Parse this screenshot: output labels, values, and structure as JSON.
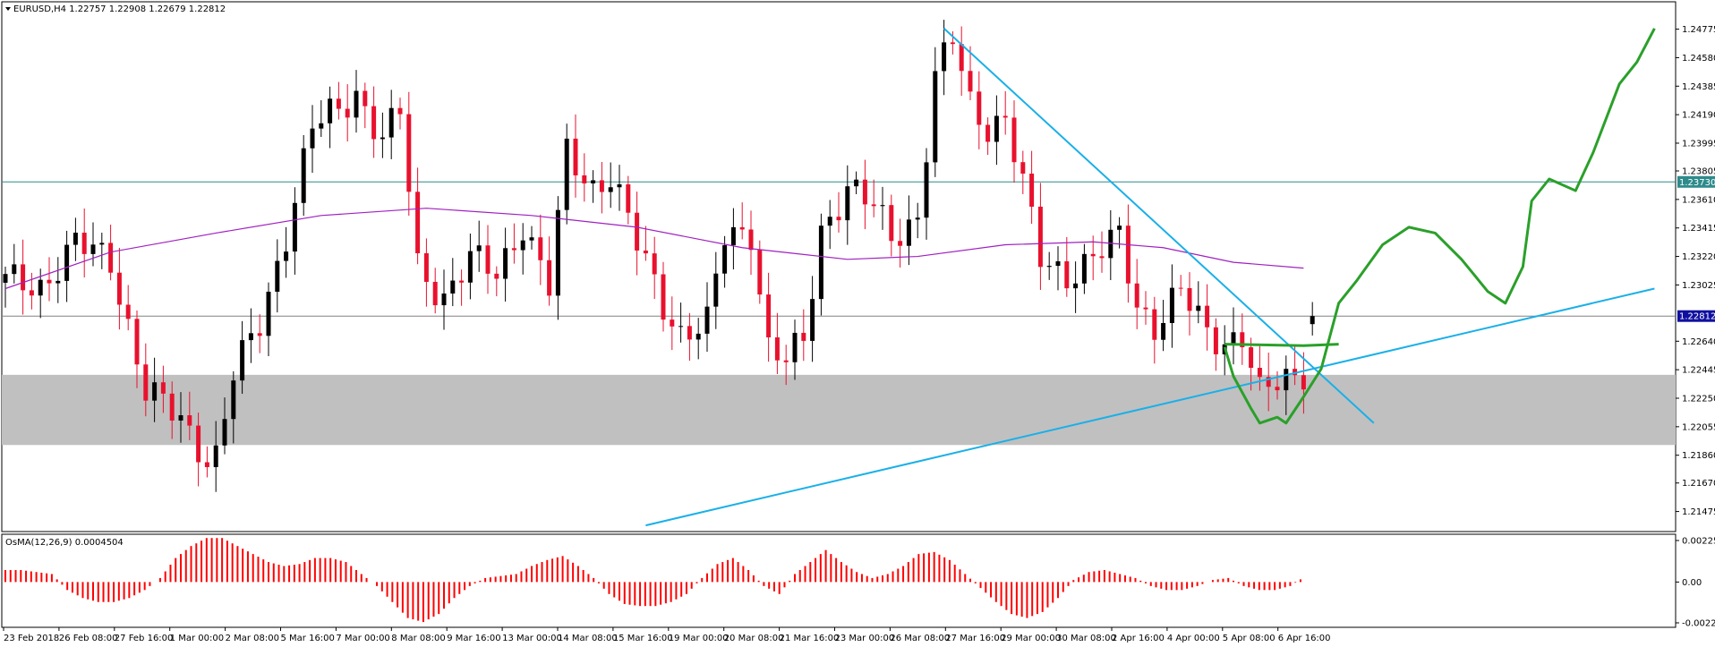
{
  "window": {
    "symbol_header": "EURUSD,H4  1.22757 1.22908 1.22679 1.22812",
    "menu_icon": "triangle-down-icon"
  },
  "colors": {
    "bull": "#000000",
    "bear": "#e8112d",
    "ma": "#a020c0",
    "trendline": "#1ab0e8",
    "projection": "#2aa02a",
    "zone": "#c0c0c0",
    "hline_teal": "#2e8b8b",
    "hline_gray": "#808080",
    "price_tag_current": "#1010a0",
    "price_tag_level": "#2e8b8b",
    "osma": "#ff0000"
  },
  "price_axis": {
    "ticks": [
      "1.24775",
      "1.24580",
      "1.24385",
      "1.24190",
      "1.23995",
      "1.23805",
      "1.23610",
      "1.23415",
      "1.23220",
      "1.23025",
      "1.22640",
      "1.22445",
      "1.22250",
      "1.22055",
      "1.21860",
      "1.21670",
      "1.21475"
    ],
    "current_price": "1.22812",
    "level_price": "1.23730"
  },
  "osma": {
    "header": "OsMA(12,26,9) 0.0004504",
    "ticks": [
      "0.002255",
      "0.00",
      "-0.002220"
    ]
  },
  "time_axis": {
    "labels": [
      "23 Feb 2018",
      "26 Feb 08:00",
      "27 Feb 16:00",
      "1 Mar 00:00",
      "2 Mar 08:00",
      "5 Mar 16:00",
      "7 Mar 00:00",
      "8 Mar 08:00",
      "9 Mar 16:00",
      "13 Mar 00:00",
      "14 Mar 08:00",
      "15 Mar 16:00",
      "19 Mar 00:00",
      "20 Mar 08:00",
      "21 Mar 16:00",
      "23 Mar 00:00",
      "26 Mar 08:00",
      "27 Mar 16:00",
      "29 Mar 00:00",
      "30 Mar 08:00",
      "2 Apr 16:00",
      "4 Apr 00:00",
      "5 Apr 08:00",
      "6 Apr 16:00"
    ]
  },
  "chart_data": {
    "type": "candlestick",
    "title": "EURUSD,H4",
    "ohlc_header": {
      "open": 1.22757,
      "high": 1.22908,
      "low": 1.22679,
      "close": 1.22812
    },
    "ylim": [
      1.2135,
      1.2495
    ],
    "close_path": [
      [
        0,
        1.2305
      ],
      [
        4,
        1.2302
      ],
      [
        8,
        1.233
      ],
      [
        12,
        1.232
      ],
      [
        16,
        1.223
      ],
      [
        20,
        1.221
      ],
      [
        23,
        1.2185
      ],
      [
        24,
        1.2186
      ],
      [
        26,
        1.224
      ],
      [
        29,
        1.2276
      ],
      [
        32,
        1.2338
      ],
      [
        35,
        1.241
      ],
      [
        38,
        1.2422
      ],
      [
        40,
        1.2435
      ],
      [
        43,
        1.2402
      ],
      [
        45,
        1.242
      ],
      [
        47,
        1.2315
      ],
      [
        50,
        1.2295
      ],
      [
        53,
        1.232
      ],
      [
        56,
        1.231
      ],
      [
        59,
        1.2345
      ],
      [
        62,
        1.23
      ],
      [
        64,
        1.2392
      ],
      [
        67,
        1.237
      ],
      [
        69,
        1.2378
      ],
      [
        72,
        1.233
      ],
      [
        75,
        1.229
      ],
      [
        77,
        1.227
      ],
      [
        80,
        1.2275
      ],
      [
        82,
        1.2335
      ],
      [
        85,
        1.234
      ],
      [
        87,
        1.226
      ],
      [
        89,
        1.225
      ],
      [
        91,
        1.2262
      ],
      [
        93,
        1.234
      ],
      [
        96,
        1.237
      ],
      [
        99,
        1.2355
      ],
      [
        101,
        1.2335
      ],
      [
        104,
        1.235
      ],
      [
        106,
        1.2444
      ],
      [
        108,
        1.247
      ],
      [
        110,
        1.2426
      ],
      [
        112,
        1.2412
      ],
      [
        114,
        1.2417
      ],
      [
        116,
        1.237
      ],
      [
        118,
        1.232
      ],
      [
        121,
        1.231
      ],
      [
        124,
        1.232
      ],
      [
        127,
        1.2335
      ],
      [
        129,
        1.229
      ],
      [
        131,
        1.2275
      ],
      [
        134,
        1.2297
      ],
      [
        137,
        1.227
      ],
      [
        139,
        1.2265
      ],
      [
        141,
        1.2268
      ],
      [
        143,
        1.2226
      ],
      [
        145,
        1.2235
      ],
      [
        148,
        1.2245
      ],
      [
        149,
        1.2281
      ]
    ],
    "moving_average": [
      [
        0,
        1.23
      ],
      [
        12,
        1.2325
      ],
      [
        24,
        1.2338
      ],
      [
        36,
        1.235
      ],
      [
        48,
        1.2355
      ],
      [
        60,
        1.235
      ],
      [
        72,
        1.2342
      ],
      [
        84,
        1.2328
      ],
      [
        96,
        1.232
      ],
      [
        104,
        1.2322
      ],
      [
        114,
        1.233
      ],
      [
        124,
        1.2332
      ],
      [
        132,
        1.2328
      ],
      [
        140,
        1.2318
      ],
      [
        148,
        1.2314
      ]
    ],
    "horizontal_levels": [
      1.2373,
      1.22812
    ],
    "support_zone": [
      1.2193,
      1.2241
    ],
    "trendlines": [
      {
        "from": [
          73,
          1.2138
        ],
        "to": [
          188,
          1.23
        ]
      },
      {
        "from": [
          107,
          1.2478
        ],
        "to": [
          156,
          1.2208
        ]
      }
    ],
    "projection_path": [
      [
        139,
        1.226
      ],
      [
        140,
        1.224
      ],
      [
        142,
        1.2218
      ],
      [
        143,
        1.2208
      ],
      [
        145,
        1.2212
      ],
      [
        146,
        1.2208
      ],
      [
        148,
        1.2226
      ],
      [
        150,
        1.2245
      ],
      [
        152,
        1.229
      ],
      [
        154,
        1.2305
      ],
      [
        157,
        1.233
      ],
      [
        160,
        1.2342
      ],
      [
        163,
        1.2338
      ],
      [
        166,
        1.232
      ],
      [
        169,
        1.2298
      ],
      [
        171,
        1.229
      ],
      [
        173,
        1.2315
      ],
      [
        174,
        1.236
      ],
      [
        176,
        1.2375
      ],
      [
        179,
        1.2367
      ],
      [
        181,
        1.2393
      ],
      [
        184,
        1.244
      ],
      [
        186,
        1.2455
      ],
      [
        188,
        1.2478
      ]
    ],
    "neckline_path": [
      [
        139,
        1.2262
      ],
      [
        148,
        1.2261
      ],
      [
        152,
        1.2262
      ]
    ],
    "osma_values": [
      0.0006,
      0.0006,
      0.0005,
      0.0004,
      -0.0004,
      -0.0008,
      -0.001,
      -0.001,
      -0.0008,
      -0.0004,
      0.0002,
      0.0012,
      0.0018,
      0.0022,
      0.0022,
      0.0018,
      0.0014,
      0.001,
      0.0008,
      0.0009,
      0.0012,
      0.0012,
      0.001,
      0.0004,
      -0.0002,
      -0.001,
      -0.0018,
      -0.002,
      -0.0016,
      -0.0008,
      -0.0002,
      0.0002,
      0.0003,
      0.0004,
      0.0008,
      0.0011,
      0.0013,
      0.0008,
      0.0002,
      -0.0006,
      -0.0011,
      -0.0012,
      -0.0012,
      -0.001,
      -0.0006,
      0.0002,
      0.0009,
      0.0012,
      0.0006,
      -0.0002,
      -0.0006,
      0.0004,
      0.001,
      0.0016,
      0.001,
      0.0005,
      0.0002,
      0.0004,
      0.0008,
      0.0014,
      0.0015,
      0.0011,
      0.0004,
      -0.0003,
      -0.001,
      -0.0016,
      -0.0018,
      -0.0015,
      -0.0008,
      0.0001,
      0.0005,
      0.0006,
      0.0004,
      0.0002,
      -0.0002,
      -0.0004,
      -0.0004,
      -0.0002,
      0.0001,
      0.0002,
      -0.0002,
      -0.0004,
      -0.0004,
      -0.0002,
      0.0003
    ],
    "osma_ylim": [
      -0.00222,
      0.002255
    ],
    "x_labels": [
      "23 Feb 2018",
      "26 Feb 08:00",
      "27 Feb 16:00",
      "1 Mar 00:00",
      "2 Mar 08:00",
      "5 Mar 16:00",
      "7 Mar 00:00",
      "8 Mar 08:00",
      "9 Mar 16:00",
      "13 Mar 00:00",
      "14 Mar 08:00",
      "15 Mar 16:00",
      "19 Mar 00:00",
      "20 Mar 08:00",
      "21 Mar 16:00",
      "23 Mar 00:00",
      "26 Mar 08:00",
      "27 Mar 16:00",
      "29 Mar 00:00",
      "30 Mar 08:00",
      "2 Apr 16:00",
      "4 Apr 00:00",
      "5 Apr 08:00",
      "6 Apr 16:00"
    ]
  }
}
